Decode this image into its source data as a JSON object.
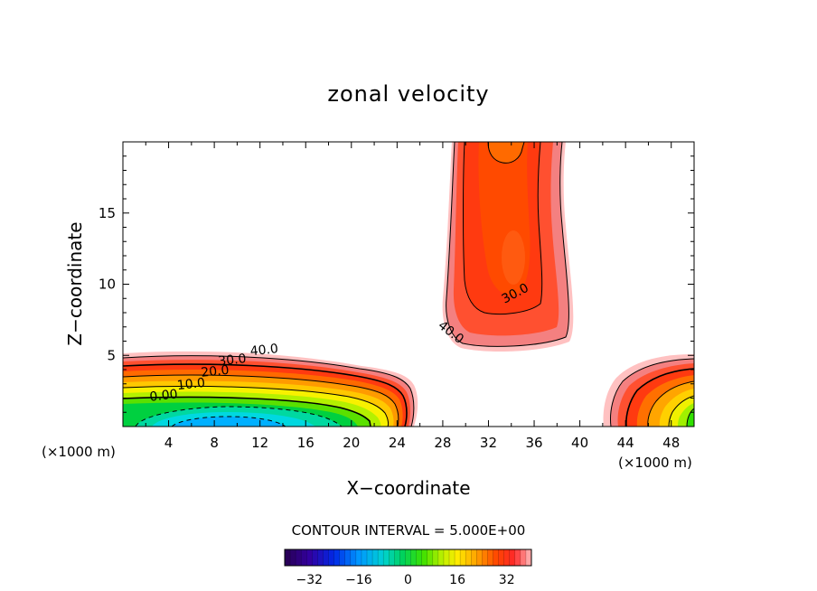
{
  "chart_data": {
    "type": "contour",
    "title": "zonal velocity",
    "xlabel": "X−coordinate",
    "ylabel": "Z−coordinate",
    "x_unit_left": "(×1000 m)",
    "x_unit_right": "(×1000 m)",
    "xlim": [
      0,
      50
    ],
    "ylim": [
      0,
      20
    ],
    "x_ticks": [
      4,
      8,
      12,
      16,
      20,
      24,
      28,
      32,
      36,
      40,
      44,
      48
    ],
    "y_ticks": [
      5,
      10,
      15
    ],
    "contour_interval_text": "CONTOUR INTERVAL = 5.000E+00",
    "contour_labels": [
      {
        "text": "40.0",
        "x": 12.4,
        "y": 5.1
      },
      {
        "text": "30.0",
        "x": 9.6,
        "y": 4.4
      },
      {
        "text": "20.0",
        "x": 8.1,
        "y": 3.6
      },
      {
        "text": "10.0",
        "x": 6.0,
        "y": 2.7
      },
      {
        "text": "0.00",
        "x": 3.6,
        "y": 1.9
      },
      {
        "text": "30.0",
        "x": 34.5,
        "y": 9.1
      },
      {
        "text": "40.0",
        "x": 28.5,
        "y": 6.4
      }
    ],
    "colorbar": {
      "vmin": -40,
      "vmax": 40,
      "ticks": [
        "−32",
        "−16",
        "0",
        "16",
        "32"
      ],
      "tick_values": [
        -32,
        -16,
        0,
        16,
        32
      ]
    },
    "features": [
      {
        "name": "lower-left jet",
        "description": "negative core near x=10, z=0 rising to positive band up to z~5 over x=0-25"
      },
      {
        "name": "upper column",
        "description": "positive column between x~28 and x~39, from z~5.5 to top, max near x=33"
      },
      {
        "name": "lower-right jet",
        "description": "positive lobe for x>42 near surface up to z~5"
      }
    ]
  }
}
